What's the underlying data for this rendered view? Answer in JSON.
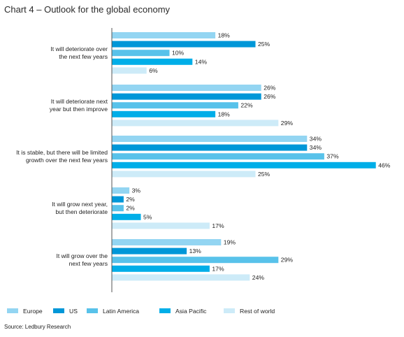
{
  "chart_data": {
    "type": "bar",
    "orientation": "horizontal",
    "title": "Chart 4 – Outlook for the global economy",
    "source": "Source: Ledbury Research",
    "xlim": [
      0,
      50
    ],
    "grid": false,
    "legend_position": "bottom",
    "categories": [
      [
        "It will deteriorate over",
        "the next few years"
      ],
      [
        "It will deteriorate next",
        "year but then improve"
      ],
      [
        "It is stable, but there will be limited",
        "growth over the next few years"
      ],
      [
        "It will grow next year,",
        "but then deteriorate"
      ],
      [
        "It will grow over the",
        "next few years"
      ]
    ],
    "series": [
      {
        "name": "Europe",
        "color": "#93d5f2",
        "values": [
          18,
          26,
          34,
          3,
          19
        ]
      },
      {
        "name": "US",
        "color": "#0097d8",
        "values": [
          25,
          26,
          34,
          2,
          13
        ]
      },
      {
        "name": "Latin America",
        "color": "#58c2ea",
        "values": [
          10,
          22,
          37,
          2,
          29
        ]
      },
      {
        "name": "Asia Pacific",
        "color": "#00aee8",
        "values": [
          14,
          18,
          46,
          5,
          17
        ]
      },
      {
        "name": "Rest of world",
        "color": "#cdebf8",
        "values": [
          6,
          29,
          25,
          17,
          24
        ]
      }
    ],
    "value_suffix": "%"
  }
}
